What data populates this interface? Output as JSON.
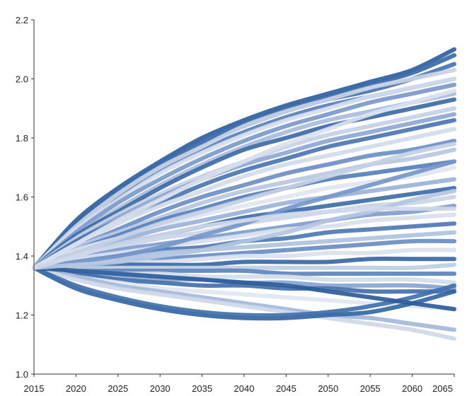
{
  "chart_data": {
    "type": "line",
    "title": "",
    "xlabel": "",
    "ylabel": "",
    "xlim": [
      2015,
      2065
    ],
    "ylim": [
      1.0,
      2.2
    ],
    "x_ticks": [
      2015,
      2020,
      2025,
      2030,
      2035,
      2040,
      2045,
      2050,
      2055,
      2060,
      2065
    ],
    "y_ticks": [
      1.0,
      1.2,
      1.4,
      1.6,
      1.8,
      2.0,
      2.2
    ],
    "y_tick_labels": [
      "1.0",
      "1.2",
      "1.4",
      "1.6",
      "1.8",
      "2.0",
      "2.2"
    ],
    "x_tick_labels": [
      "2015",
      "2020",
      "2025",
      "2030",
      "2035",
      "2040",
      "2045",
      "2050",
      "2055",
      "2060",
      "2065"
    ],
    "grid": false,
    "legend": "none",
    "start": {
      "x": 2015,
      "y": 1.36
    },
    "x": [
      2015,
      2020,
      2025,
      2030,
      2035,
      2040,
      2045,
      2050,
      2055,
      2060,
      2065
    ],
    "series": [
      {
        "color": "#2f5f9e",
        "values": [
          1.36,
          1.52,
          1.63,
          1.72,
          1.8,
          1.86,
          1.91,
          1.95,
          1.99,
          2.03,
          2.1
        ]
      },
      {
        "color": "#3b6aa8",
        "values": [
          1.36,
          1.51,
          1.62,
          1.71,
          1.79,
          1.85,
          1.9,
          1.94,
          1.98,
          2.02,
          2.08
        ]
      },
      {
        "color": "#4672b0",
        "values": [
          1.36,
          1.5,
          1.61,
          1.7,
          1.78,
          1.84,
          1.89,
          1.93,
          1.96,
          2.0,
          2.05
        ]
      },
      {
        "color": "#5a80b8",
        "values": [
          1.36,
          1.49,
          1.6,
          1.69,
          1.76,
          1.82,
          1.87,
          1.91,
          1.94,
          1.97,
          2.0
        ]
      },
      {
        "color": "#c9d4e6",
        "values": [
          1.36,
          1.5,
          1.61,
          1.7,
          1.77,
          1.84,
          1.89,
          1.93,
          1.97,
          2.0,
          2.03
        ]
      },
      {
        "color": "#d6deec",
        "values": [
          1.36,
          1.49,
          1.59,
          1.68,
          1.75,
          1.81,
          1.86,
          1.9,
          1.94,
          1.97,
          2.0
        ]
      },
      {
        "color": "#7b9acb",
        "values": [
          1.36,
          1.48,
          1.58,
          1.66,
          1.73,
          1.79,
          1.84,
          1.88,
          1.92,
          1.95,
          1.98
        ]
      },
      {
        "color": "#a9bcdc",
        "values": [
          1.36,
          1.47,
          1.56,
          1.64,
          1.71,
          1.77,
          1.82,
          1.86,
          1.89,
          1.92,
          1.95
        ]
      },
      {
        "color": "#3d6ba6",
        "values": [
          1.36,
          1.47,
          1.55,
          1.63,
          1.7,
          1.76,
          1.8,
          1.84,
          1.87,
          1.9,
          1.93
        ]
      },
      {
        "color": "#c5d1e5",
        "values": [
          1.36,
          1.46,
          1.54,
          1.61,
          1.67,
          1.72,
          1.77,
          1.81,
          1.84,
          1.87,
          1.9
        ]
      },
      {
        "color": "#8ea8d2",
        "values": [
          1.36,
          1.45,
          1.53,
          1.6,
          1.66,
          1.71,
          1.75,
          1.79,
          1.82,
          1.85,
          1.88
        ]
      },
      {
        "color": "#4b76b2",
        "values": [
          1.36,
          1.45,
          1.52,
          1.58,
          1.64,
          1.69,
          1.73,
          1.77,
          1.8,
          1.83,
          1.86
        ]
      },
      {
        "color": "#d2dbea",
        "values": [
          1.36,
          1.44,
          1.51,
          1.57,
          1.62,
          1.67,
          1.71,
          1.74,
          1.77,
          1.8,
          1.83
        ]
      },
      {
        "color": "#6d8fc4",
        "values": [
          1.36,
          1.43,
          1.49,
          1.55,
          1.6,
          1.64,
          1.68,
          1.71,
          1.74,
          1.76,
          1.79
        ]
      },
      {
        "color": "#b7c7e1",
        "values": [
          1.36,
          1.43,
          1.48,
          1.53,
          1.58,
          1.62,
          1.65,
          1.68,
          1.71,
          1.73,
          1.76
        ]
      },
      {
        "color": "#5680bb",
        "values": [
          1.36,
          1.42,
          1.47,
          1.52,
          1.56,
          1.6,
          1.63,
          1.66,
          1.68,
          1.7,
          1.72
        ]
      },
      {
        "color": "#dfe5f0",
        "values": [
          1.36,
          1.42,
          1.46,
          1.5,
          1.54,
          1.57,
          1.6,
          1.63,
          1.65,
          1.67,
          1.7
        ]
      },
      {
        "color": "#9bb2d7",
        "values": [
          1.36,
          1.41,
          1.45,
          1.49,
          1.52,
          1.55,
          1.58,
          1.6,
          1.62,
          1.64,
          1.66
        ]
      },
      {
        "color": "#3f6ca7",
        "values": [
          1.36,
          1.4,
          1.44,
          1.47,
          1.5,
          1.53,
          1.55,
          1.57,
          1.59,
          1.61,
          1.63
        ]
      },
      {
        "color": "#cad5e7",
        "values": [
          1.36,
          1.4,
          1.43,
          1.46,
          1.48,
          1.51,
          1.53,
          1.55,
          1.57,
          1.58,
          1.6
        ]
      },
      {
        "color": "#7e9ccd",
        "values": [
          1.36,
          1.39,
          1.42,
          1.44,
          1.46,
          1.48,
          1.5,
          1.52,
          1.54,
          1.55,
          1.57
        ]
      },
      {
        "color": "#d8e0ed",
        "values": [
          1.36,
          1.39,
          1.41,
          1.43,
          1.45,
          1.47,
          1.49,
          1.5,
          1.52,
          1.53,
          1.54
        ]
      },
      {
        "color": "#4e79b4",
        "values": [
          1.36,
          1.38,
          1.4,
          1.42,
          1.43,
          1.45,
          1.46,
          1.48,
          1.49,
          1.5,
          1.51
        ]
      },
      {
        "color": "#b0c2df",
        "values": [
          1.36,
          1.38,
          1.39,
          1.41,
          1.42,
          1.43,
          1.44,
          1.45,
          1.46,
          1.47,
          1.48
        ]
      },
      {
        "color": "#6a8dc3",
        "values": [
          1.36,
          1.37,
          1.38,
          1.39,
          1.4,
          1.41,
          1.42,
          1.43,
          1.44,
          1.45,
          1.45
        ]
      },
      {
        "color": "#dbe2ee",
        "values": [
          1.36,
          1.37,
          1.38,
          1.38,
          1.39,
          1.4,
          1.4,
          1.41,
          1.41,
          1.42,
          1.42
        ]
      },
      {
        "color": "#3a68a4",
        "values": [
          1.36,
          1.36,
          1.37,
          1.37,
          1.37,
          1.38,
          1.38,
          1.38,
          1.39,
          1.39,
          1.39
        ]
      },
      {
        "color": "#c0cee4",
        "values": [
          1.36,
          1.36,
          1.36,
          1.36,
          1.36,
          1.36,
          1.36,
          1.36,
          1.36,
          1.36,
          1.37
        ]
      },
      {
        "color": "#5b84bd",
        "values": [
          1.36,
          1.35,
          1.35,
          1.35,
          1.35,
          1.35,
          1.34,
          1.34,
          1.34,
          1.34,
          1.34
        ]
      },
      {
        "color": "#d3dcea",
        "values": [
          1.36,
          1.35,
          1.34,
          1.34,
          1.33,
          1.33,
          1.33,
          1.32,
          1.32,
          1.32,
          1.31
        ]
      },
      {
        "color": "#8aa5d1",
        "values": [
          1.36,
          1.34,
          1.33,
          1.32,
          1.32,
          1.31,
          1.31,
          1.3,
          1.3,
          1.3,
          1.29
        ]
      },
      {
        "color": "#456fae",
        "values": [
          1.36,
          1.34,
          1.32,
          1.31,
          1.3,
          1.3,
          1.29,
          1.29,
          1.28,
          1.28,
          1.28
        ]
      },
      {
        "color": "#e1e7f1",
        "values": [
          1.36,
          1.33,
          1.31,
          1.29,
          1.28,
          1.27,
          1.26,
          1.25,
          1.24,
          1.23,
          1.22
        ]
      },
      {
        "color": "#a4b9db",
        "values": [
          1.36,
          1.33,
          1.3,
          1.28,
          1.26,
          1.24,
          1.22,
          1.2,
          1.19,
          1.17,
          1.15
        ]
      },
      {
        "color": "#cfd8e9",
        "values": [
          1.36,
          1.32,
          1.29,
          1.27,
          1.25,
          1.23,
          1.21,
          1.19,
          1.17,
          1.15,
          1.12
        ]
      },
      {
        "color": "#3566a3",
        "values": [
          1.36,
          1.29,
          1.25,
          1.22,
          1.2,
          1.19,
          1.19,
          1.2,
          1.21,
          1.24,
          1.28
        ]
      },
      {
        "color": "#4070ad",
        "values": [
          1.36,
          1.3,
          1.26,
          1.23,
          1.21,
          1.2,
          1.2,
          1.21,
          1.23,
          1.26,
          1.3
        ]
      },
      {
        "color": "#2d5c9a",
        "values": [
          1.36,
          1.35,
          1.34,
          1.33,
          1.32,
          1.31,
          1.3,
          1.28,
          1.26,
          1.24,
          1.22
        ]
      },
      {
        "color": "#c4d0e5",
        "values": [
          1.36,
          1.41,
          1.46,
          1.51,
          1.55,
          1.59,
          1.63,
          1.67,
          1.71,
          1.75,
          1.78
        ]
      },
      {
        "color": "#dae1ee",
        "values": [
          1.36,
          1.44,
          1.52,
          1.59,
          1.66,
          1.72,
          1.78,
          1.83,
          1.88,
          1.92,
          1.96
        ]
      },
      {
        "color": "#7597ca",
        "values": [
          1.36,
          1.38,
          1.4,
          1.43,
          1.47,
          1.51,
          1.56,
          1.6,
          1.64,
          1.68,
          1.72
        ]
      },
      {
        "color": "#b4c5e0",
        "values": [
          1.36,
          1.37,
          1.38,
          1.4,
          1.42,
          1.45,
          1.48,
          1.52,
          1.55,
          1.59,
          1.62
        ]
      },
      {
        "color": "#d0d9ea",
        "values": [
          1.36,
          1.4,
          1.44,
          1.47,
          1.5,
          1.52,
          1.54,
          1.55,
          1.56,
          1.56,
          1.56
        ]
      }
    ]
  }
}
